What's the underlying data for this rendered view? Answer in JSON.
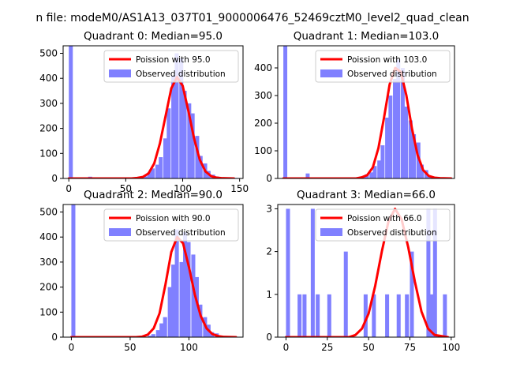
{
  "suptitle": "n file: modeM0/AS1A13_037T01_9000006476_52469cztM0_level2_quad_clean",
  "colors": {
    "hist": "#8080ff",
    "curve": "#ff0000",
    "axis": "#000000"
  },
  "chart_data": [
    {
      "type": "bar",
      "title": "Quadrant 0: Median=95.0",
      "xlim": [
        -5,
        153
      ],
      "ylim": [
        0,
        530
      ],
      "xticks": [
        0,
        50,
        100,
        150
      ],
      "yticks": [
        0,
        100,
        200,
        300,
        400,
        500
      ],
      "legend": {
        "position": "top-right",
        "curve_label": "Poission with 95.0",
        "hist_label": "Observed distribution"
      },
      "bar_width": 3.5,
      "bars": [
        [
          0,
          530
        ],
        [
          7,
          4
        ],
        [
          17,
          7
        ],
        [
          66,
          8
        ],
        [
          69,
          25
        ],
        [
          72,
          40
        ],
        [
          76,
          55
        ],
        [
          79,
          85
        ],
        [
          83,
          160
        ],
        [
          86,
          280
        ],
        [
          90,
          410
        ],
        [
          93,
          500
        ],
        [
          97,
          480
        ],
        [
          100,
          350
        ],
        [
          104,
          300
        ],
        [
          107,
          260
        ],
        [
          111,
          170
        ],
        [
          114,
          90
        ],
        [
          118,
          60
        ],
        [
          121,
          30
        ],
        [
          125,
          15
        ],
        [
          128,
          8
        ],
        [
          132,
          4
        ],
        [
          142,
          3
        ],
        [
          146,
          2
        ]
      ],
      "curve": {
        "x": [
          0,
          55,
          60,
          65,
          70,
          75,
          80,
          85,
          90,
          95,
          100,
          105,
          110,
          115,
          120,
          125,
          130,
          135,
          145
        ],
        "y": [
          0,
          0,
          2,
          6,
          20,
          60,
          140,
          250,
          360,
          405,
          370,
          270,
          160,
          75,
          28,
          9,
          3,
          1,
          0
        ]
      }
    },
    {
      "type": "bar",
      "title": "Quadrant 1: Median=103.0",
      "xlim": [
        -5,
        153
      ],
      "ylim": [
        0,
        480
      ],
      "xticks": [],
      "yticks": [
        0,
        100,
        200,
        300,
        400
      ],
      "legend": {
        "position": "top-right",
        "curve_label": "Poission with 103.0",
        "hist_label": "Observed distribution"
      },
      "bar_width": 3.5,
      "bars": [
        [
          0,
          480
        ],
        [
          20,
          18
        ],
        [
          66,
          5
        ],
        [
          70,
          8
        ],
        [
          73,
          15
        ],
        [
          77,
          22
        ],
        [
          80,
          45
        ],
        [
          84,
          65
        ],
        [
          87,
          120
        ],
        [
          91,
          220
        ],
        [
          94,
          300
        ],
        [
          98,
          360
        ],
        [
          101,
          430
        ],
        [
          105,
          400
        ],
        [
          108,
          260
        ],
        [
          112,
          210
        ],
        [
          115,
          160
        ],
        [
          119,
          130
        ],
        [
          122,
          50
        ],
        [
          126,
          30
        ],
        [
          129,
          10
        ],
        [
          133,
          5
        ],
        [
          140,
          3
        ]
      ],
      "curve": {
        "x": [
          0,
          65,
          70,
          75,
          80,
          85,
          90,
          95,
          100,
          105,
          110,
          115,
          120,
          125,
          130,
          135,
          140,
          150
        ],
        "y": [
          0,
          0,
          4,
          12,
          40,
          110,
          220,
          340,
          400,
          385,
          300,
          180,
          85,
          30,
          9,
          3,
          1,
          0
        ]
      }
    },
    {
      "type": "bar",
      "title": "Quadrant 2: Median=90.0",
      "xlim": [
        -7,
        146
      ],
      "ylim": [
        0,
        530
      ],
      "xticks": [
        0,
        50,
        100
      ],
      "yticks": [
        0,
        100,
        200,
        300,
        400,
        500
      ],
      "legend": {
        "position": "top-right",
        "curve_label": "Poission with 90.0",
        "hist_label": "Observed distribution"
      },
      "bar_width": 3.4,
      "bars": [
        [
          0,
          530
        ],
        [
          16,
          4
        ],
        [
          65,
          6
        ],
        [
          68,
          12
        ],
        [
          72,
          28
        ],
        [
          75,
          55
        ],
        [
          78,
          80
        ],
        [
          82,
          200
        ],
        [
          85,
          290
        ],
        [
          88,
          430
        ],
        [
          92,
          300
        ],
        [
          95,
          420
        ],
        [
          98,
          380
        ],
        [
          102,
          330
        ],
        [
          105,
          240
        ],
        [
          108,
          130
        ],
        [
          112,
          80
        ],
        [
          115,
          50
        ],
        [
          118,
          20
        ],
        [
          122,
          15
        ],
        [
          125,
          5
        ],
        [
          131,
          3
        ]
      ],
      "curve": {
        "x": [
          0,
          55,
          60,
          65,
          70,
          75,
          80,
          85,
          90,
          95,
          100,
          105,
          110,
          115,
          120,
          125,
          130,
          140
        ],
        "y": [
          0,
          0,
          2,
          10,
          35,
          95,
          210,
          340,
          400,
          375,
          280,
          170,
          85,
          35,
          12,
          4,
          1,
          0
        ]
      }
    },
    {
      "type": "bar",
      "title": "Quadrant 3: Median=66.0",
      "xlim": [
        -5,
        102
      ],
      "ylim": [
        0,
        3.1
      ],
      "xticks": [
        0,
        25,
        50,
        75,
        100
      ],
      "yticks": [
        0,
        1,
        2,
        3
      ],
      "legend": {
        "position": "top-right",
        "curve_label": "Poission with 66.0",
        "hist_label": "Observed distribution"
      },
      "bar_width": 2.4,
      "bars": [
        [
          0,
          3
        ],
        [
          7,
          1
        ],
        [
          10,
          1
        ],
        [
          15,
          3
        ],
        [
          18,
          1
        ],
        [
          25,
          1
        ],
        [
          35,
          2
        ],
        [
          47,
          1
        ],
        [
          52,
          1
        ],
        [
          60,
          1
        ],
        [
          67,
          1
        ],
        [
          72,
          1
        ],
        [
          75,
          2
        ],
        [
          85,
          3
        ],
        [
          87,
          1
        ],
        [
          89,
          3
        ],
        [
          95,
          1
        ]
      ],
      "curve": {
        "x": [
          0,
          38,
          42,
          46,
          50,
          54,
          58,
          62,
          66,
          70,
          74,
          78,
          82,
          86,
          90,
          98
        ],
        "y": [
          0,
          0,
          0.05,
          0.2,
          0.55,
          1.2,
          2.0,
          2.7,
          3.0,
          2.75,
          2.1,
          1.3,
          0.6,
          0.2,
          0.05,
          0
        ]
      }
    }
  ]
}
